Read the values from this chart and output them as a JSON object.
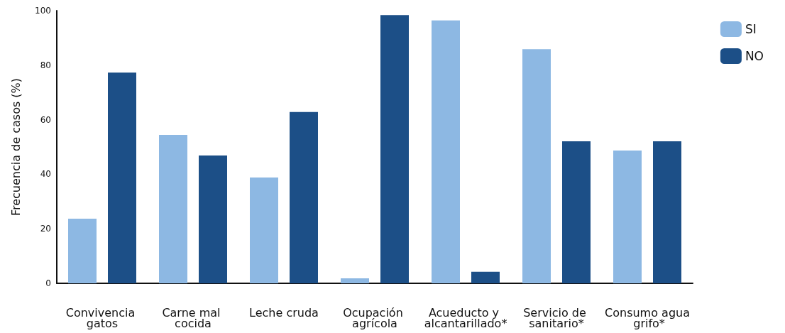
{
  "chart_data": {
    "type": "bar",
    "ylabel": "Frecuencia de casos (%)",
    "categories": [
      "Convivencia gatos",
      "Carne mal cocida",
      "Leche cruda",
      "Ocupación agrícola",
      "Acueducto y alcantarillado*",
      "Servicio de sanitario*",
      "Consumo agua grifo*"
    ],
    "series": [
      {
        "name": "SI",
        "color": "#8db8e3",
        "values": [
          23.7,
          54.4,
          38.8,
          1.8,
          96.4,
          85.9,
          48.7
        ]
      },
      {
        "name": "NO",
        "color": "#1c4f87",
        "values": [
          77.3,
          46.9,
          62.8,
          98.4,
          4.2,
          52.1,
          52.1
        ]
      }
    ],
    "ylim": [
      0,
      100
    ],
    "yticks": [
      0,
      20,
      40,
      60,
      80,
      100
    ],
    "grid": false,
    "legend": "top right"
  }
}
